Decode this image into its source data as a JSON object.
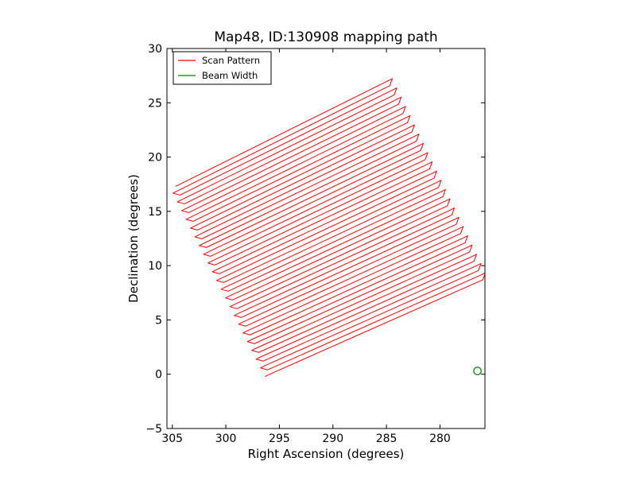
{
  "chart_data": {
    "type": "line",
    "title": "Map48, ID:130908 mapping path",
    "xlabel": "Right Ascension (degrees)",
    "ylabel": "Declination (degrees)",
    "xlim": [
      305.5,
      275.8
    ],
    "ylim": [
      -5,
      30
    ],
    "x_inverted": true,
    "xticks": [
      305,
      300,
      295,
      290,
      285,
      280
    ],
    "yticks": [
      -5,
      0,
      5,
      10,
      15,
      20,
      25,
      30
    ],
    "xtick_labels": [
      "305",
      "300",
      "295",
      "290",
      "285",
      "280"
    ],
    "ytick_labels": [
      "−5",
      "0",
      "5",
      "10",
      "15",
      "20",
      "25",
      "30"
    ],
    "grid": false,
    "legend_position": "top-left",
    "series": [
      {
        "name": "Scan Pattern",
        "color": "#ff0000",
        "kind": "raster-scan",
        "passes": 44,
        "corners": {
          "start_top_left": [
            304.7,
            17.3
          ],
          "end_top_right": [
            284.9,
            27.0
          ],
          "start_bottom_left": [
            295.9,
            0.0
          ],
          "end_bottom_right": [
            276.0,
            8.7
          ]
        },
        "zigzag_amplitude_deg": 0.5
      },
      {
        "name": "Beam Width",
        "color": "#008000",
        "kind": "circle",
        "center": [
          276.5,
          0.3
        ],
        "radius_deg": 0.35
      }
    ]
  }
}
